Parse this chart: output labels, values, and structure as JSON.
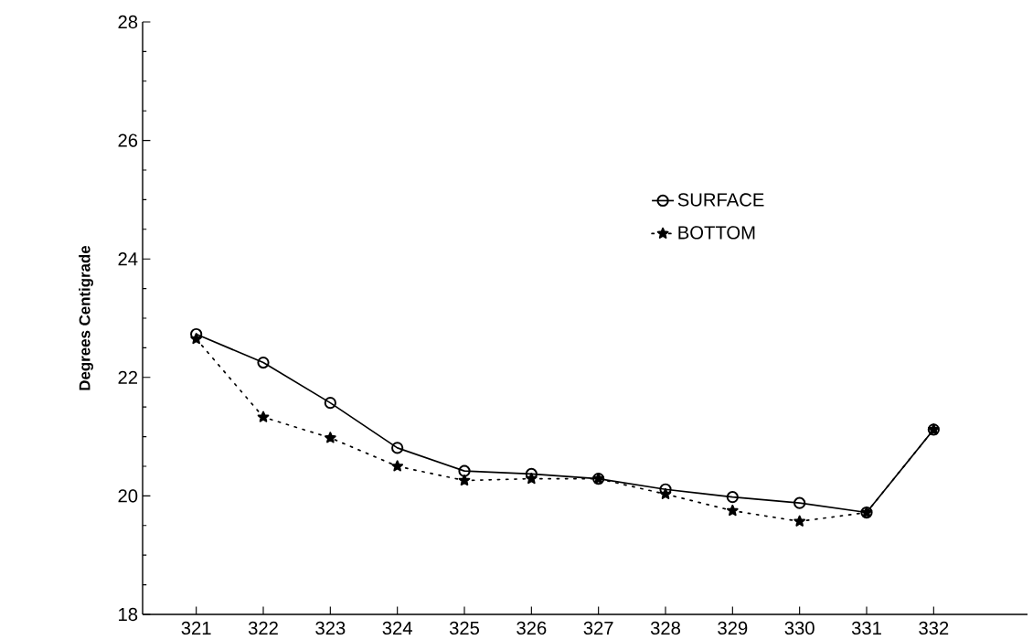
{
  "chart_data": {
    "type": "line",
    "ylabel": "Degrees Centigrade",
    "categories": [
      "321",
      "322",
      "323",
      "324",
      "325",
      "326",
      "327",
      "328",
      "329",
      "330",
      "331",
      "332"
    ],
    "series": [
      {
        "name": "SURFACE",
        "color": "#000000",
        "marker": "circle",
        "line_style": "solid",
        "values": [
          22.73,
          22.25,
          21.57,
          20.81,
          20.42,
          20.37,
          20.29,
          20.11,
          19.98,
          19.88,
          19.72,
          21.12
        ]
      },
      {
        "name": "BOTTOM",
        "color": "#000000",
        "marker": "star",
        "line_style": "dotted",
        "values": [
          22.65,
          21.33,
          20.98,
          20.5,
          20.26,
          20.29,
          20.29,
          20.03,
          19.75,
          19.57,
          19.72,
          21.12
        ]
      }
    ],
    "ylim": [
      18,
      28
    ],
    "yticks": [
      18,
      20,
      22,
      24,
      26,
      28
    ],
    "grid": false,
    "legend": "right"
  }
}
